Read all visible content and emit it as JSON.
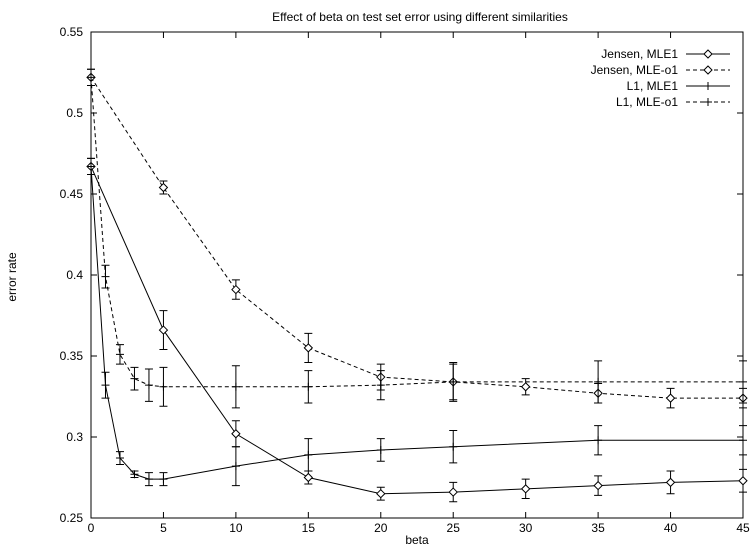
{
  "chart_data": {
    "type": "line",
    "title": "Effect of beta on test set error using different similarities",
    "xlabel": "beta",
    "ylabel": "error rate",
    "xlim": [
      0,
      45
    ],
    "ylim": [
      0.25,
      0.55
    ],
    "grid": false,
    "legend_position": "top-right",
    "x_ticks": [
      0,
      5,
      10,
      15,
      20,
      25,
      30,
      35,
      40,
      45
    ],
    "y_ticks": [
      0.25,
      0.3,
      0.35,
      0.4,
      0.45,
      0.5,
      0.55
    ],
    "x_tick_labels": [
      "0",
      "5",
      "10",
      "15",
      "20",
      "25",
      "30",
      "35",
      "40",
      "45"
    ],
    "y_tick_labels": [
      "0.25",
      "0.3",
      "0.35",
      "0.4",
      "0.45",
      "0.5",
      "0.55"
    ],
    "series": [
      {
        "name": "Jensen, MLE1",
        "line": "solid",
        "marker": "diamond",
        "x": [
          0,
          5,
          10,
          15,
          20,
          25,
          30,
          35,
          40,
          45
        ],
        "y": [
          0.467,
          0.366,
          0.302,
          0.275,
          0.265,
          0.266,
          0.268,
          0.27,
          0.272,
          0.273
        ],
        "err": [
          0.005,
          0.012,
          0.008,
          0.004,
          0.004,
          0.006,
          0.006,
          0.006,
          0.007,
          0.007
        ]
      },
      {
        "name": "Jensen, MLE-o1",
        "line": "dashed",
        "marker": "diamond",
        "x": [
          0,
          5,
          10,
          15,
          20,
          25,
          30,
          35,
          40,
          45
        ],
        "y": [
          0.522,
          0.454,
          0.391,
          0.355,
          0.337,
          0.334,
          0.331,
          0.327,
          0.324,
          0.324
        ],
        "err": [
          0.005,
          0.004,
          0.006,
          0.009,
          0.008,
          0.012,
          0.005,
          0.006,
          0.006,
          0.006
        ]
      },
      {
        "name": "L1, MLE1",
        "line": "solid",
        "marker": "plus",
        "x": [
          0,
          1,
          2,
          3,
          4,
          5,
          10,
          15,
          20,
          25,
          35,
          45
        ],
        "y": [
          0.467,
          0.332,
          0.287,
          0.277,
          0.274,
          0.274,
          0.282,
          0.289,
          0.292,
          0.294,
          0.298,
          0.298
        ],
        "err": [
          0.005,
          0.008,
          0.004,
          0.002,
          0.004,
          0.004,
          0.012,
          0.01,
          0.007,
          0.01,
          0.009,
          0.009
        ]
      },
      {
        "name": "L1, MLE-o1",
        "line": "dashed",
        "marker": "plus",
        "x": [
          0,
          1,
          2,
          3,
          4,
          5,
          10,
          15,
          20,
          25,
          35,
          45
        ],
        "y": [
          0.522,
          0.399,
          0.351,
          0.336,
          0.332,
          0.331,
          0.331,
          0.331,
          0.332,
          0.334,
          0.334,
          0.334
        ],
        "err": [
          0.005,
          0.007,
          0.006,
          0.007,
          0.01,
          0.012,
          0.013,
          0.01,
          0.009,
          0.011,
          0.013,
          0.013
        ]
      }
    ]
  }
}
